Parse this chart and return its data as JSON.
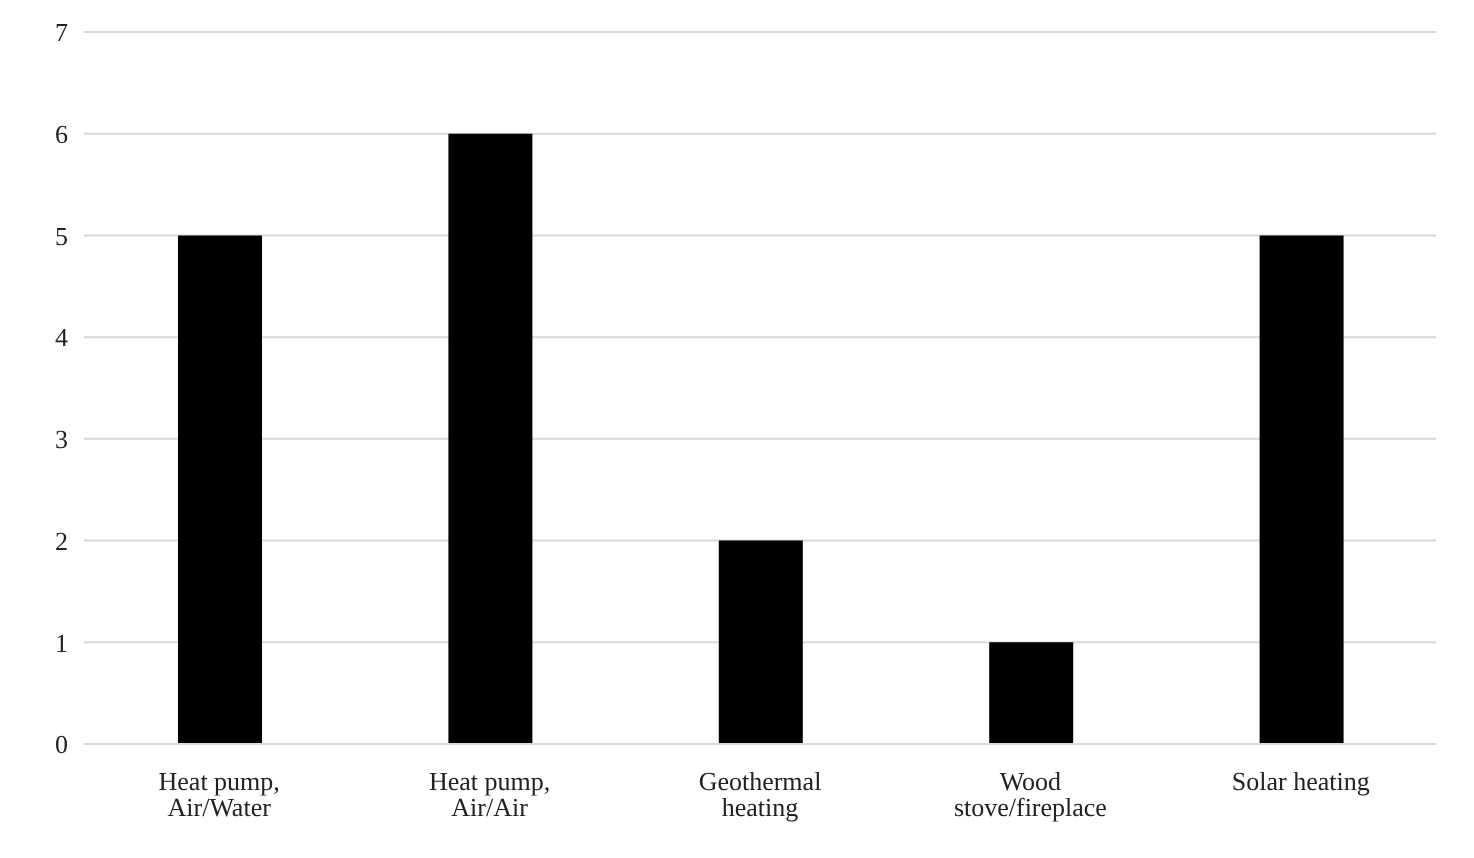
{
  "chart_data": {
    "type": "bar",
    "categories": [
      "Heat pump, Air/Water",
      "Heat pump, Air/Air",
      "Geothermal heating",
      "Wood stove/fireplace",
      "Solar heating"
    ],
    "values": [
      5,
      6,
      2,
      1,
      5
    ],
    "color": "#000000",
    "ylim": [
      0,
      7
    ],
    "yticks": [
      0,
      1,
      2,
      3,
      4,
      5,
      6,
      7
    ],
    "grid": "y"
  }
}
